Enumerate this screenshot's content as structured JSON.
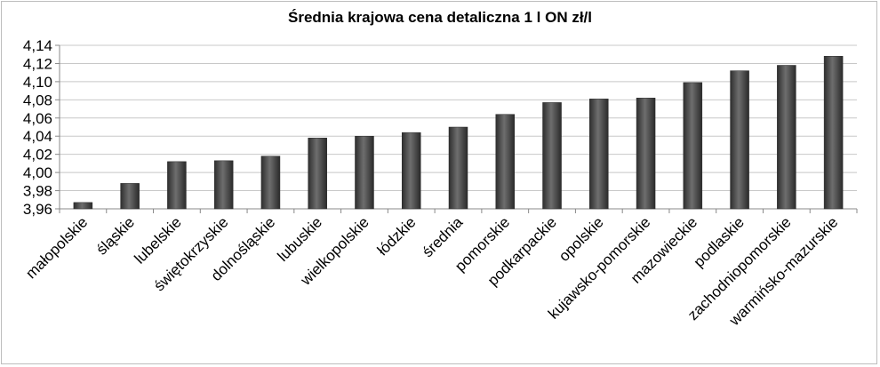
{
  "chart_data": {
    "type": "bar",
    "title": "Średnia krajowa cena detaliczna 1 l ON zł/l",
    "xlabel": "",
    "ylabel": "",
    "ylim": [
      3.96,
      4.14
    ],
    "yticks": [
      "3,96",
      "3,98",
      "4,00",
      "4,02",
      "4,04",
      "4,06",
      "4,08",
      "4,10",
      "4,12",
      "4,14"
    ],
    "ytick_values": [
      3.96,
      3.98,
      4.0,
      4.02,
      4.04,
      4.06,
      4.08,
      4.1,
      4.12,
      4.14
    ],
    "grid": true,
    "legend": "none",
    "bar_color": "#4a4a4a",
    "categories": [
      "małopolskie",
      "śląskie",
      "lubelskie",
      "świętokrzyskie",
      "dolnośląskie",
      "lubuskie",
      "wielkopolskie",
      "łódzkie",
      "średnia",
      "pomorskie",
      "podkarpackie",
      "opolskie",
      "kujawsko-pomorskie",
      "mazowieckie",
      "podlaskie",
      "zachodniopomorskie",
      "warmińsko-mazurskie"
    ],
    "values": [
      3.967,
      3.988,
      4.012,
      4.013,
      4.018,
      4.038,
      4.04,
      4.044,
      4.05,
      4.064,
      4.077,
      4.081,
      4.082,
      4.099,
      4.112,
      4.118,
      4.128
    ]
  }
}
